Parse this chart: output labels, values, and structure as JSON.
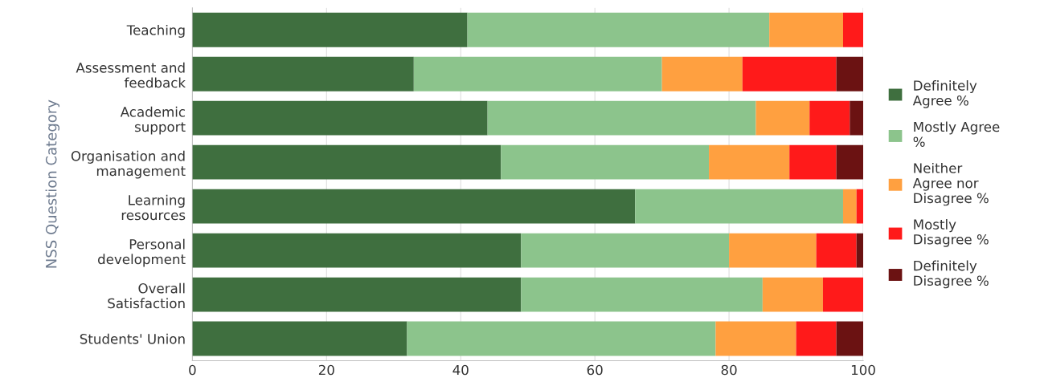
{
  "chart_data": {
    "type": "bar",
    "orientation": "horizontal",
    "stacked": true,
    "ylabel": "NSS Question Category",
    "categories": [
      "Teaching",
      "Assessment and\nfeedback",
      "Academic\nsupport",
      "Organisation and\nmanagement",
      "Learning\nresources",
      "Personal\ndevelopment",
      "Overall\nSatisfaction",
      "Students' Union"
    ],
    "series": [
      {
        "name": "Definitely\nAgree %",
        "color": "#3f6f3f",
        "values": [
          41,
          33,
          44,
          46,
          66,
          49,
          49,
          32
        ]
      },
      {
        "name": "Mostly Agree\n%",
        "color": "#8cc48c",
        "values": [
          45,
          37,
          40,
          31,
          31,
          31,
          36,
          46
        ]
      },
      {
        "name": "Neither\nAgree nor\nDisagree %",
        "color": "#ffa040",
        "values": [
          11,
          12,
          8,
          12,
          2,
          13,
          9,
          12
        ]
      },
      {
        "name": "Mostly\nDisagree %",
        "color": "#ff1a1a",
        "values": [
          3,
          14,
          6,
          7,
          1,
          6,
          6,
          6
        ]
      },
      {
        "name": "Definitely\nDisagree %",
        "color": "#6b1212",
        "values": [
          0,
          4,
          2,
          4,
          0,
          1,
          0,
          4
        ]
      }
    ],
    "xlim": [
      0,
      100
    ],
    "xticks": [
      0,
      20,
      40,
      60,
      80,
      100
    ],
    "grid": "x",
    "legend": "right"
  }
}
